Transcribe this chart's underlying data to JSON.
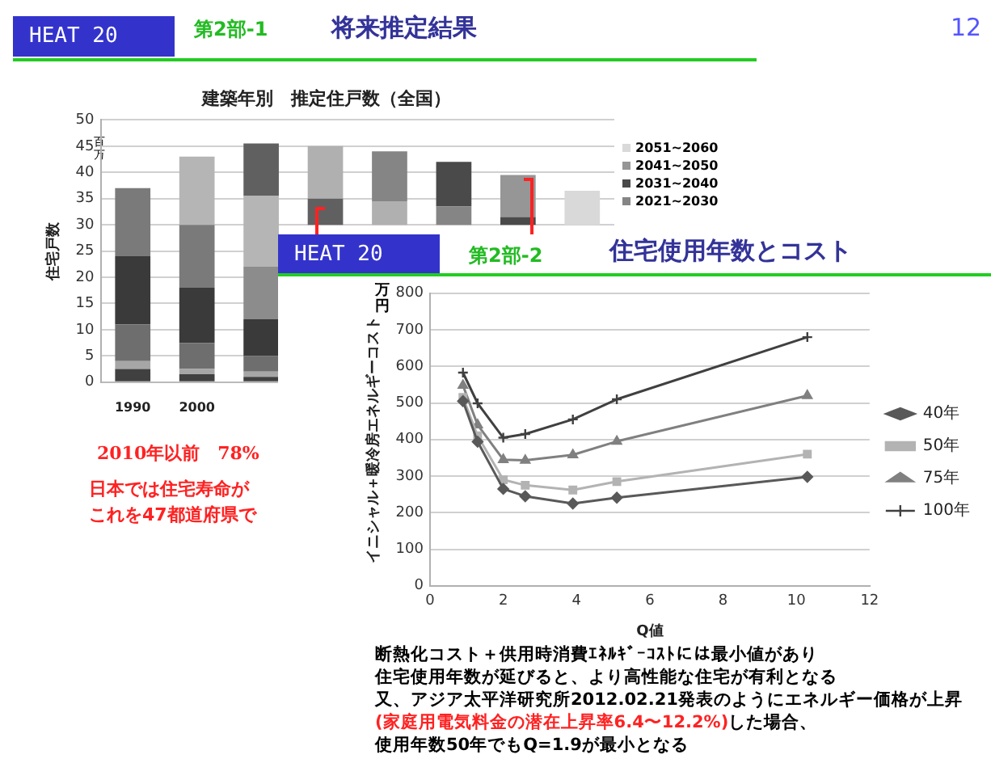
{
  "chart_data": [
    {
      "type": "bar",
      "title": "建築年別　推定住戸数（全国）",
      "ylabel": "住宅戸数",
      "legend": "right",
      "grid": "y",
      "categories": [
        "1990",
        "2000",
        null,
        null,
        null,
        null,
        null,
        null
      ],
      "ylim": [
        0,
        50
      ],
      "yticks": [
        0,
        5,
        10,
        15,
        20,
        25,
        30,
        35,
        40,
        45,
        50
      ],
      "series": [
        {
          "colors": [
            "#404040",
            "#404040",
            "#404040",
            "#404040",
            "#404040",
            "#404040",
            "#404040",
            "#404040"
          ],
          "base": [
            0,
            0,
            0,
            null,
            null,
            null,
            null,
            null
          ],
          "values": [
            2.5,
            1.5,
            1,
            null,
            null,
            null,
            null,
            null
          ]
        },
        {
          "colors": [
            "#a6a6a6",
            "#a6a6a6",
            "#a6a6a6",
            "#a6a6a6",
            "#a6a6a6",
            "#a6a6a6",
            "#a6a6a6",
            "#a6a6a6"
          ],
          "base": [
            2.5,
            1.5,
            1,
            null,
            null,
            null,
            null,
            null
          ],
          "values": [
            1.5,
            1,
            1,
            null,
            null,
            null,
            null,
            null
          ]
        },
        {
          "colors": [
            "#6e6e6e",
            "#6e6e6e",
            "#6e6e6e",
            "#6e6e6e",
            "#6e6e6e",
            "#6e6e6e",
            "#6e6e6e",
            "#6e6e6e"
          ],
          "base": [
            4,
            2.5,
            2,
            null,
            null,
            null,
            null,
            null
          ],
          "values": [
            7,
            5,
            3,
            null,
            null,
            null,
            null,
            null
          ]
        },
        {
          "colors": [
            "#3a3a3a",
            "#3a3a3a",
            "#3a3a3a",
            "#3a3a3a",
            "#3a3a3a",
            "#3a3a3a",
            "#3a3a3a",
            "#3a3a3a"
          ],
          "base": [
            11,
            7.5,
            5,
            null,
            null,
            null,
            null,
            null
          ],
          "values": [
            13,
            10.5,
            7,
            null,
            null,
            null,
            null,
            null
          ]
        },
        {
          "colors": [
            "#7a7a7a",
            "#7a7a7a",
            "#8c8c8c",
            "#8c8c8c",
            "#8c8c8c",
            "#8c8c8c",
            "#8c8c8c",
            "#8c8c8c"
          ],
          "base": [
            24,
            18,
            12,
            null,
            null,
            null,
            null,
            null
          ],
          "values": [
            13,
            12,
            10,
            null,
            null,
            null,
            null,
            null
          ]
        },
        {
          "colors": [
            "#b5b5b5",
            "#b5b5b5",
            "#b5b5b5",
            "#b5b5b5",
            "#b5b5b5",
            "#b5b5b5",
            "#b5b5b5",
            "#b5b5b5"
          ],
          "base": [
            null,
            30,
            22,
            null,
            null,
            null,
            null,
            null
          ],
          "values": [
            null,
            13,
            13.5,
            null,
            null,
            null,
            null,
            null
          ]
        },
        {
          "colors": [
            "#606060",
            "#606060",
            "#606060",
            "#606060",
            "#606060",
            "#606060",
            "#606060",
            "#606060"
          ],
          "base": [
            null,
            null,
            35.5,
            30,
            null,
            null,
            null,
            null
          ],
          "values": [
            null,
            null,
            10,
            5,
            null,
            null,
            null,
            null
          ]
        },
        {
          "colors": [
            "#b0b0b0",
            "#b0b0b0",
            "#b0b0b0",
            "#b0b0b0",
            "#b0b0b0",
            "#b0b0b0",
            "#b0b0b0",
            "#b0b0b0"
          ],
          "base": [
            null,
            null,
            null,
            35,
            30,
            null,
            null,
            null
          ],
          "values": [
            null,
            null,
            null,
            10,
            4.5,
            null,
            null,
            null
          ]
        },
        {
          "name": "2021~2030",
          "color": "#858585",
          "base": [
            null,
            null,
            null,
            null,
            34.5,
            30,
            null,
            null
          ],
          "values": [
            null,
            null,
            null,
            null,
            9.5,
            3.5,
            null,
            null
          ]
        },
        {
          "name": "2031~2040",
          "color": "#4a4a4a",
          "base": [
            null,
            null,
            null,
            null,
            null,
            33.5,
            30,
            null
          ],
          "values": [
            null,
            null,
            null,
            null,
            null,
            8.5,
            1.5,
            null
          ]
        },
        {
          "name": "2041~2050",
          "color": "#969696",
          "base": [
            null,
            null,
            null,
            null,
            null,
            null,
            31.5,
            null
          ],
          "values": [
            null,
            null,
            null,
            null,
            null,
            null,
            8,
            null
          ]
        },
        {
          "name": "2051~2060",
          "color": "#d9d9d9",
          "base": [
            null,
            null,
            null,
            null,
            null,
            null,
            null,
            30
          ],
          "values": [
            null,
            null,
            null,
            null,
            null,
            null,
            null,
            6.5
          ]
        }
      ],
      "annotations": [
        "HEAT 20",
        "第2部-1",
        "将来推定結果",
        "12",
        "百万",
        "2010年以前　78%",
        "日本では住宅寿命が",
        "これを47都道府県で"
      ]
    },
    {
      "type": "line",
      "title": "住宅使用年数とコスト",
      "xlabel": "Q値",
      "ylabel": "イニシャル＋暖冷房エネルギーコスト",
      "legend": "right",
      "grid": "y",
      "xlim": [
        0,
        12
      ],
      "xticks": [
        0,
        2,
        4,
        6,
        8,
        10,
        12
      ],
      "ylim": [
        0,
        800
      ],
      "yticks": [
        0,
        100,
        200,
        300,
        400,
        500,
        600,
        700,
        800
      ],
      "x": [
        0.9,
        1.3,
        2,
        2.6,
        3.9,
        5.1,
        10.3
      ],
      "series": [
        {
          "name": "40年",
          "color": "#595959",
          "marker": "diamond",
          "values": [
            505,
            394,
            265,
            245,
            225,
            241,
            298
          ]
        },
        {
          "name": "50年",
          "color": "#b3b3b3",
          "marker": "square",
          "values": [
            515,
            410,
            290,
            275,
            262,
            285,
            360
          ]
        },
        {
          "name": "75年",
          "color": "#808080",
          "marker": "triangle",
          "values": [
            548,
            440,
            345,
            343,
            358,
            395,
            520
          ]
        },
        {
          "name": "100年",
          "color": "#404040",
          "marker": "cross",
          "values": [
            583,
            499,
            405,
            415,
            455,
            510,
            680
          ]
        }
      ],
      "annotations": [
        "HEAT 20",
        "第2部-2",
        "万円",
        "断熱化コスト＋供用時消費ｴﾈﾙｷﾞｰｺｽﾄには最小値があり",
        "住宅使用年数が延びると、より高性能な住宅が有利となる",
        "又、アジア太平洋研究所2012.02.21発表のようにエネルギー価格が上昇",
        "(家庭用電気料金の潜在上昇率6.4〜12.2%)",
        "した場合、",
        "使用年数50年でもQ=1.9が最小となる"
      ]
    }
  ]
}
